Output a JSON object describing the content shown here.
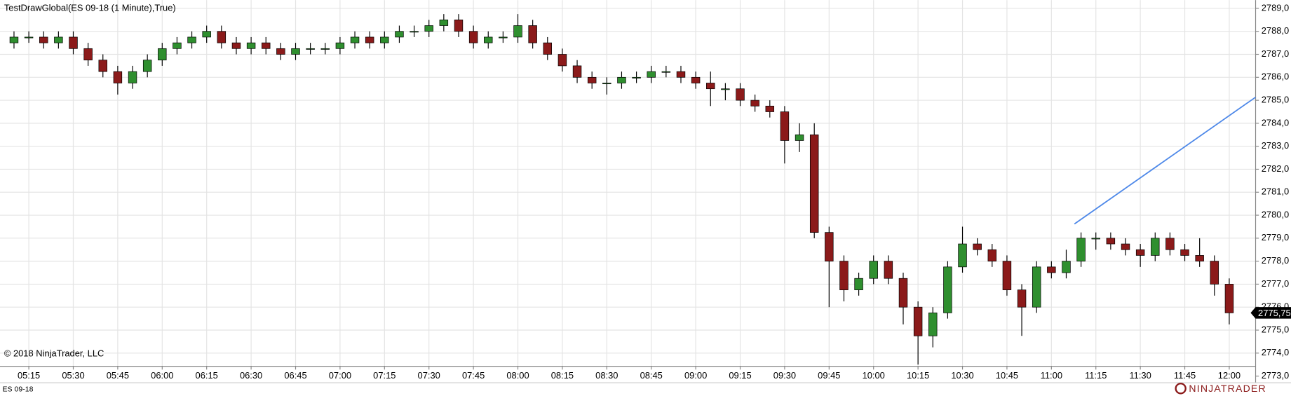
{
  "chart_data": {
    "type": "candlestick",
    "title": "TestDrawGlobal(ES 09-18 (1 Minute),True)",
    "copyright": "© 2018 NinjaTrader, LLC",
    "instrument": "ES 09-18",
    "brand": "NINJATRADER",
    "categories": [
      null,
      "05:15",
      null,
      null,
      "05:30",
      null,
      null,
      "05:45",
      null,
      null,
      "06:00",
      null,
      null,
      "06:15",
      null,
      null,
      "06:30",
      null,
      null,
      "06:45",
      null,
      null,
      "07:00",
      null,
      null,
      "07:15",
      null,
      null,
      "07:30",
      null,
      null,
      "07:45",
      null,
      null,
      "08:00",
      null,
      null,
      "08:15",
      null,
      null,
      "08:30",
      null,
      null,
      "08:45",
      null,
      null,
      "09:00",
      null,
      null,
      "09:15",
      null,
      null,
      "09:30",
      null,
      null,
      "09:45",
      null,
      null,
      "10:00",
      null,
      null,
      "10:15",
      null,
      null,
      "10:30",
      null,
      null,
      "10:45",
      null,
      null,
      "11:00",
      null,
      null,
      "11:15",
      null,
      null,
      "11:30",
      null,
      null,
      "11:45",
      null,
      null,
      "12:00"
    ],
    "open": [
      2787.5,
      2787.75,
      2787.75,
      2787.5,
      2787.75,
      2787.25,
      2786.75,
      2786.25,
      2785.75,
      2786.25,
      2786.75,
      2787.25,
      2787.5,
      2787.75,
      2788.0,
      2787.5,
      2787.25,
      2787.5,
      2787.25,
      2787.0,
      2787.25,
      2787.25,
      2787.25,
      2787.5,
      2787.75,
      2787.5,
      2787.75,
      2788.0,
      2788.0,
      2788.25,
      2788.5,
      2788.0,
      2787.5,
      2787.75,
      2787.75,
      2788.25,
      2787.5,
      2787.0,
      2786.5,
      2786.0,
      2785.75,
      2785.75,
      2786.0,
      2786.0,
      2786.25,
      2786.25,
      2786.0,
      2785.75,
      2785.5,
      2785.5,
      2785.0,
      2784.75,
      2784.5,
      2783.25,
      2783.5,
      2779.25,
      2778.0,
      2776.75,
      2777.25,
      2778.0,
      2777.25,
      2776.0,
      2774.75,
      2775.75,
      2777.75,
      2778.75,
      2778.5,
      2778.0,
      2776.75,
      2776.0,
      2777.75,
      2777.5,
      2778.0,
      2779.0,
      2779.0,
      2778.75,
      2778.5,
      2778.25,
      2779.0,
      2778.5,
      2778.25,
      2778.0,
      2777.0
    ],
    "high": [
      2788.0,
      2788.0,
      2788.0,
      2788.0,
      2788.0,
      2787.5,
      2787.0,
      2786.5,
      2786.5,
      2787.0,
      2787.5,
      2787.75,
      2788.0,
      2788.25,
      2788.25,
      2787.75,
      2787.75,
      2787.75,
      2787.5,
      2787.5,
      2787.5,
      2787.5,
      2787.75,
      2788.0,
      2788.0,
      2788.0,
      2788.25,
      2788.25,
      2788.5,
      2788.75,
      2788.75,
      2788.25,
      2788.0,
      2788.0,
      2788.75,
      2788.5,
      2787.75,
      2787.25,
      2786.75,
      2786.25,
      2786.0,
      2786.25,
      2786.25,
      2786.5,
      2786.5,
      2786.5,
      2786.25,
      2786.25,
      2785.75,
      2785.75,
      2785.25,
      2785.0,
      2784.75,
      2784.0,
      2784.0,
      2779.5,
      2778.25,
      2777.5,
      2778.25,
      2778.25,
      2777.5,
      2776.25,
      2776.0,
      2778.0,
      2779.5,
      2779.0,
      2778.75,
      2778.25,
      2777.0,
      2778.0,
      2778.0,
      2778.5,
      2779.25,
      2779.25,
      2779.25,
      2779.0,
      2778.75,
      2779.25,
      2779.25,
      2778.75,
      2779.0,
      2778.25,
      2777.25
    ],
    "low": [
      2787.25,
      2787.5,
      2787.25,
      2787.25,
      2787.0,
      2786.5,
      2786.0,
      2785.25,
      2785.5,
      2786.0,
      2786.5,
      2787.0,
      2787.25,
      2787.5,
      2787.25,
      2787.0,
      2787.0,
      2787.0,
      2786.75,
      2786.75,
      2787.0,
      2787.0,
      2787.0,
      2787.25,
      2787.25,
      2787.25,
      2787.5,
      2787.75,
      2787.75,
      2788.0,
      2787.75,
      2787.25,
      2787.25,
      2787.5,
      2787.5,
      2787.25,
      2786.75,
      2786.25,
      2785.75,
      2785.5,
      2785.25,
      2785.5,
      2785.75,
      2785.75,
      2786.0,
      2785.75,
      2785.5,
      2784.75,
      2785.0,
      2784.75,
      2784.5,
      2784.25,
      2782.25,
      2782.75,
      2779.0,
      2776.0,
      2776.25,
      2776.5,
      2777.0,
      2777.0,
      2775.25,
      2773.5,
      2774.25,
      2775.5,
      2777.5,
      2778.25,
      2777.75,
      2776.5,
      2774.75,
      2775.75,
      2777.25,
      2777.25,
      2777.75,
      2778.5,
      2778.5,
      2778.25,
      2777.75,
      2778.0,
      2778.25,
      2778.0,
      2777.75,
      2776.5,
      2775.25
    ],
    "close": [
      2787.75,
      2787.75,
      2787.5,
      2787.75,
      2787.25,
      2786.75,
      2786.25,
      2785.75,
      2786.25,
      2786.75,
      2787.25,
      2787.5,
      2787.75,
      2788.0,
      2787.5,
      2787.25,
      2787.5,
      2787.25,
      2787.0,
      2787.25,
      2787.25,
      2787.25,
      2787.5,
      2787.75,
      2787.5,
      2787.75,
      2788.0,
      2788.0,
      2788.25,
      2788.5,
      2788.0,
      2787.5,
      2787.75,
      2787.75,
      2788.25,
      2787.5,
      2787.0,
      2786.5,
      2786.0,
      2785.75,
      2785.75,
      2786.0,
      2786.0,
      2786.25,
      2786.25,
      2786.0,
      2785.75,
      2785.5,
      2785.5,
      2785.0,
      2784.75,
      2784.5,
      2783.25,
      2783.5,
      2779.25,
      2778.0,
      2776.75,
      2777.25,
      2778.0,
      2777.25,
      2776.0,
      2774.75,
      2775.75,
      2777.75,
      2778.75,
      2778.5,
      2778.0,
      2776.75,
      2776.0,
      2777.75,
      2777.5,
      2778.0,
      2779.0,
      2779.0,
      2778.75,
      2778.5,
      2778.25,
      2779.0,
      2778.5,
      2778.25,
      2778.0,
      2777.0,
      2775.75
    ],
    "up_color": "#2f8f2f",
    "down_color": "#8b1a1a",
    "wick_color": "#000000",
    "ylim": [
      2772.71,
      2789.36
    ],
    "yticks": [
      {
        "value": 2773,
        "label": "2773,0"
      },
      {
        "value": 2774,
        "label": "2774,0"
      },
      {
        "value": 2775,
        "label": "2775,0"
      },
      {
        "value": 2776,
        "label": "2776,0"
      },
      {
        "value": 2777,
        "label": "2777,0"
      },
      {
        "value": 2778,
        "label": "2778,0"
      },
      {
        "value": 2779,
        "label": "2779,0"
      },
      {
        "value": 2780,
        "label": "2780,0"
      },
      {
        "value": 2781,
        "label": "2781,0"
      },
      {
        "value": 2782,
        "label": "2782,0"
      },
      {
        "value": 2783,
        "label": "2783,0"
      },
      {
        "value": 2784,
        "label": "2784,0"
      },
      {
        "value": 2785,
        "label": "2785,0"
      },
      {
        "value": 2786,
        "label": "2786,0"
      },
      {
        "value": 2787,
        "label": "2787,0"
      },
      {
        "value": 2788,
        "label": "2788,0"
      },
      {
        "value": 2789,
        "label": "2789,0"
      }
    ],
    "last_price": {
      "value": 2775.75,
      "label": "2775,75"
    },
    "grid": true
  }
}
